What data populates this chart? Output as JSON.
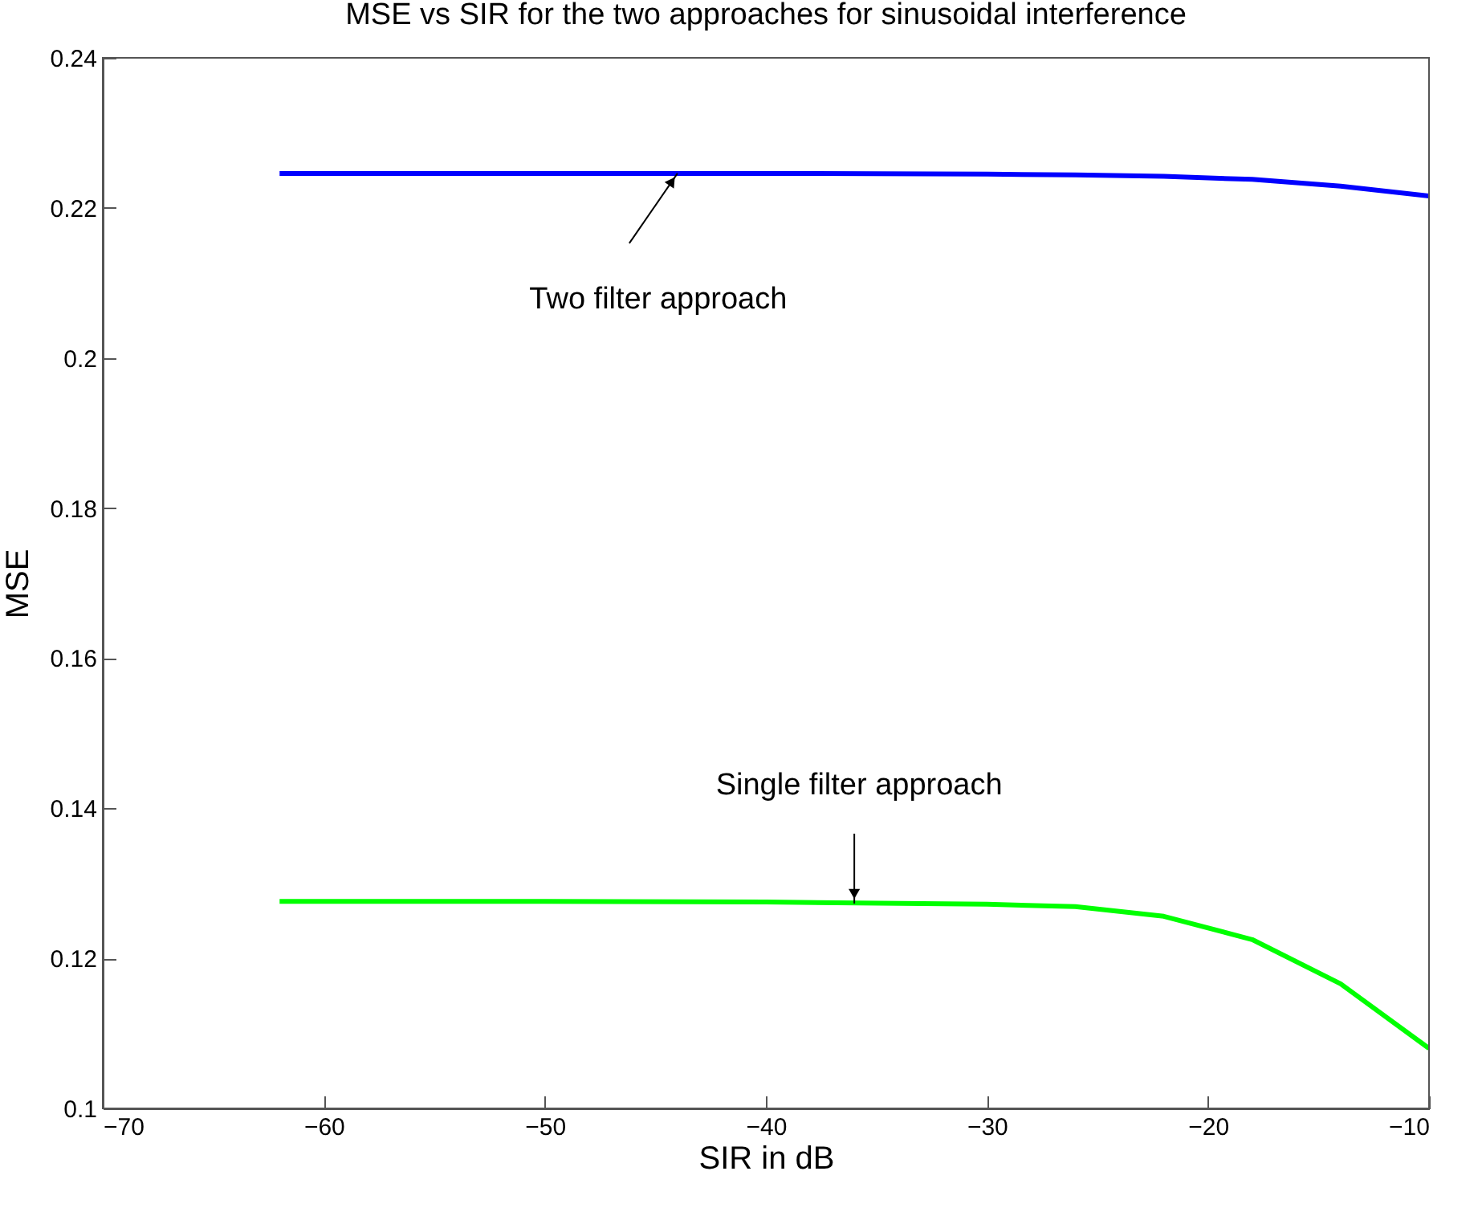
{
  "chart_data": {
    "type": "line",
    "title": "MSE vs SIR  for the two approaches for sinusoidal interference",
    "xlabel": "SIR in dB",
    "ylabel": "MSE",
    "x": [
      -62,
      -50,
      -40,
      -30,
      -26,
      -22,
      -18,
      -14,
      -10
    ],
    "series": [
      {
        "color": "#0000ff",
        "values": [
          0.2246,
          0.2246,
          0.2246,
          0.2245,
          0.2244,
          0.2242,
          0.2238,
          0.2229,
          0.2216
        ]
      },
      {
        "color": "#00ff00",
        "values": [
          0.1276,
          0.1276,
          0.1275,
          0.1272,
          0.1269,
          0.1256,
          0.1225,
          0.1166,
          0.108
        ]
      }
    ],
    "xlim": [
      -70,
      -10
    ],
    "xticks": [
      {
        "value": -70,
        "label": "−70"
      },
      {
        "value": -60,
        "label": "−60"
      },
      {
        "value": -50,
        "label": "−50"
      },
      {
        "value": -40,
        "label": "−40"
      },
      {
        "value": -30,
        "label": "−30"
      },
      {
        "value": -20,
        "label": "−20"
      },
      {
        "value": -10,
        "label": "−10"
      }
    ],
    "ylim": [
      0.1,
      0.24
    ],
    "yticks": [
      0.1,
      0.12,
      0.14,
      0.16,
      0.18,
      0.2,
      0.22,
      0.24
    ],
    "annotations": [
      {
        "text": "Two filter approach",
        "x": -44,
        "y": 0.2246
      },
      {
        "text": "Single filter approach",
        "x": -36,
        "y": 0.1273
      }
    ],
    "grid": false,
    "legend": false
  }
}
